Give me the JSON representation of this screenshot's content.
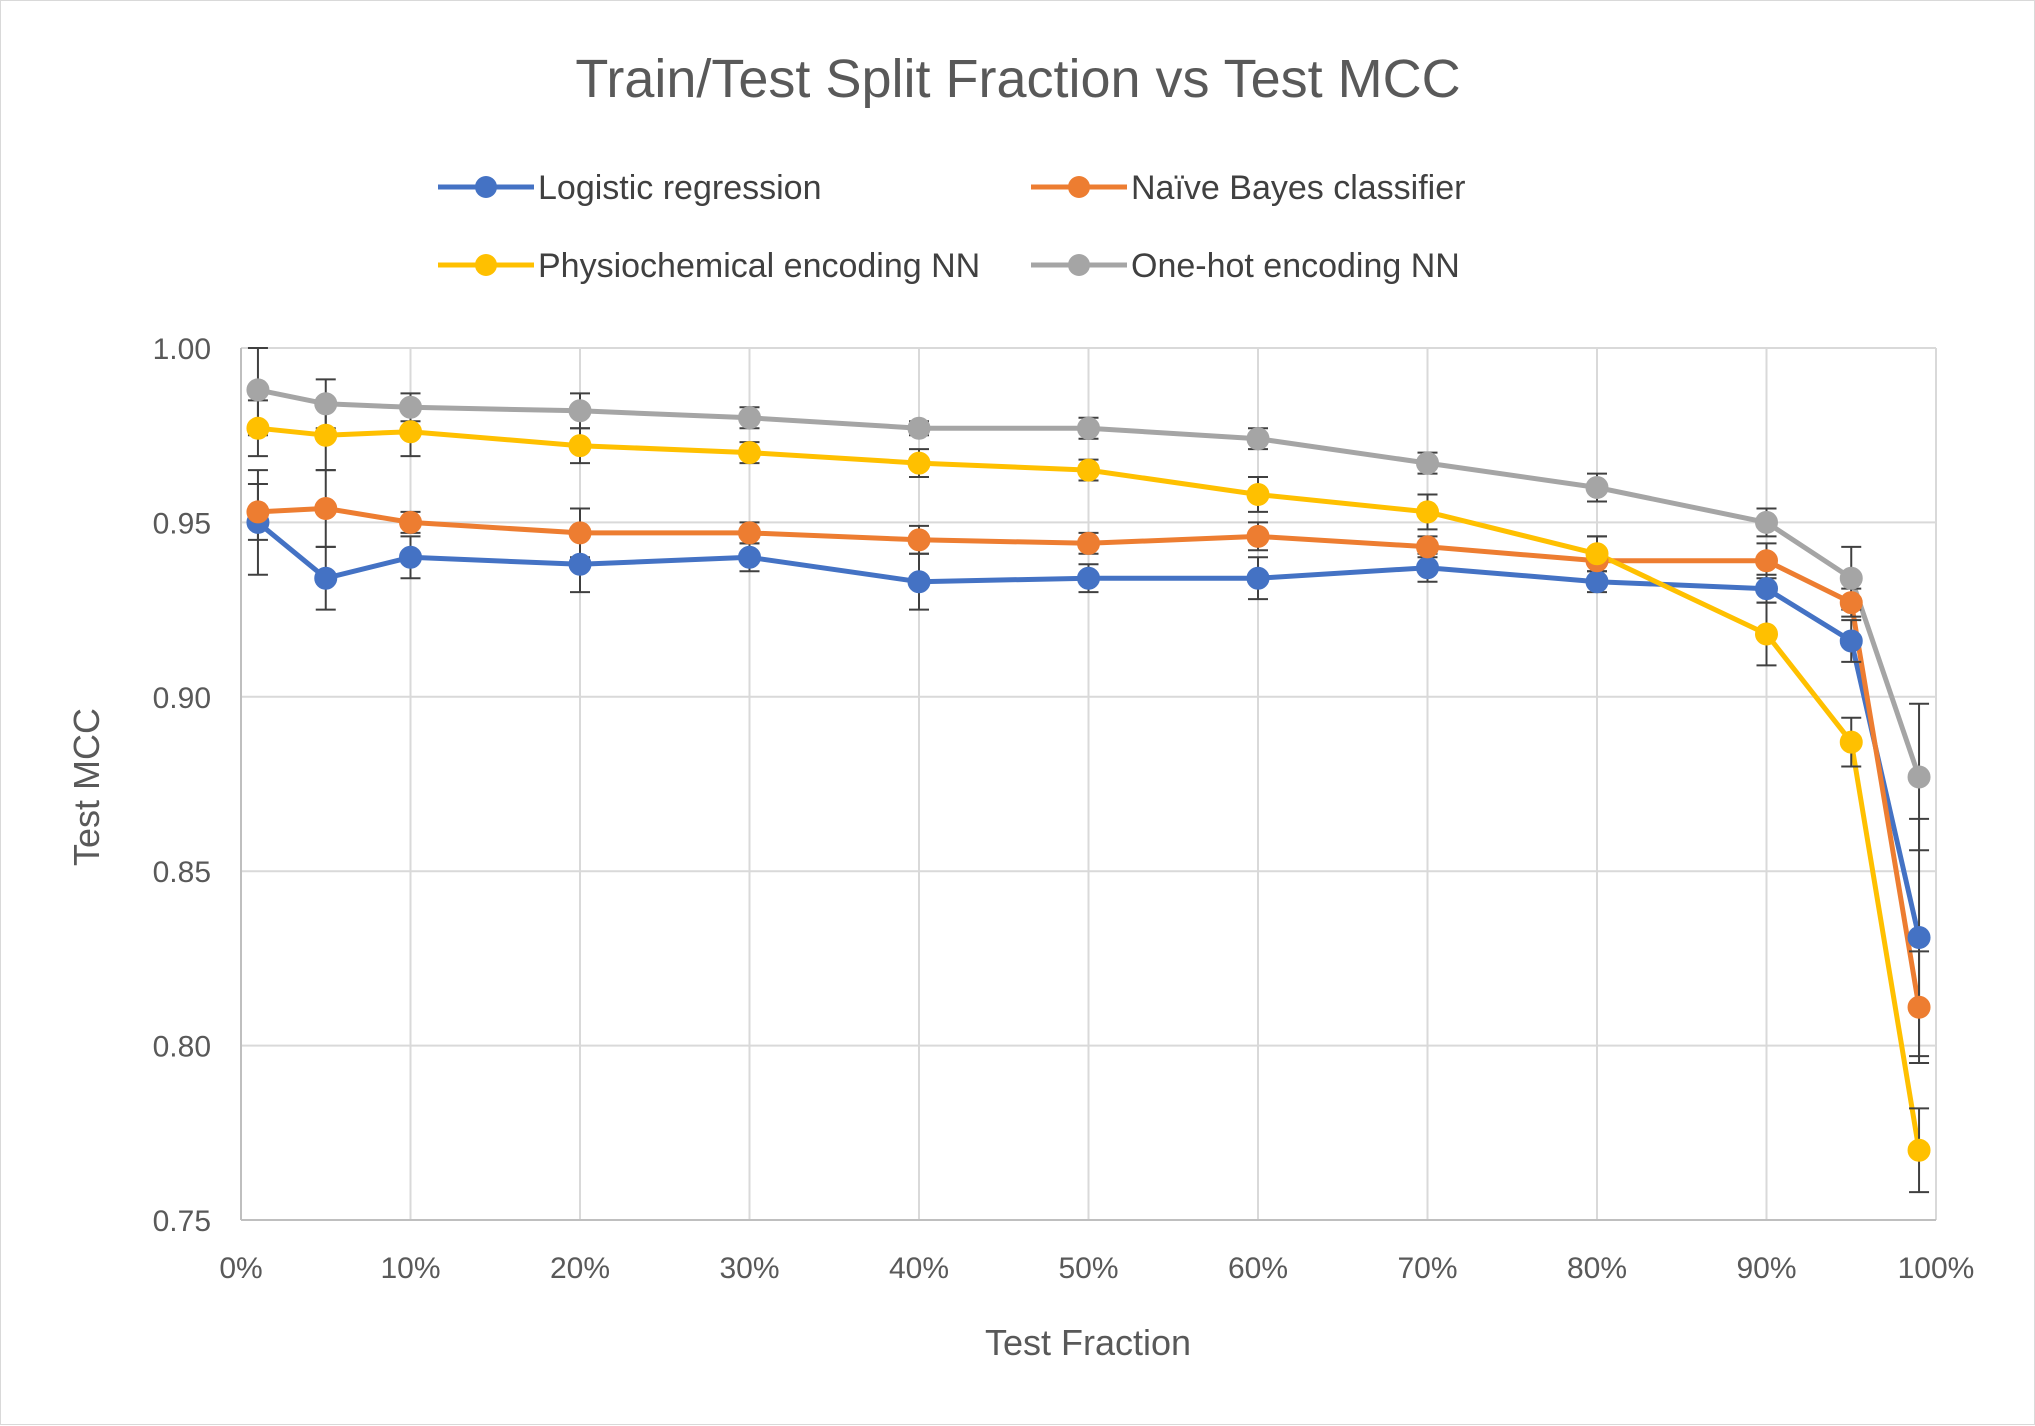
{
  "chart_data": {
    "type": "line",
    "title": "Train/Test Split Fraction vs Test MCC",
    "xlabel": "Test Fraction",
    "ylabel": "Test MCC",
    "x": [
      0.01,
      0.05,
      0.1,
      0.2,
      0.3,
      0.4,
      0.5,
      0.6,
      0.7,
      0.8,
      0.9,
      0.95,
      0.99
    ],
    "xlim": [
      0,
      1
    ],
    "ylim": [
      0.75,
      1.0
    ],
    "x_ticks": [
      "0%",
      "10%",
      "20%",
      "30%",
      "40%",
      "50%",
      "60%",
      "70%",
      "80%",
      "90%",
      "100%"
    ],
    "y_ticks": [
      "0.75",
      "0.80",
      "0.85",
      "0.90",
      "0.95",
      "1.00"
    ],
    "grid": "on",
    "legend_position": "top",
    "series": [
      {
        "name": "Logistic regression",
        "color": "#4472C4",
        "values": [
          0.95,
          0.934,
          0.94,
          0.938,
          0.94,
          0.933,
          0.934,
          0.934,
          0.937,
          0.933,
          0.931,
          0.916,
          0.831
        ],
        "errors": [
          0.015,
          0.009,
          0.006,
          0.008,
          0.004,
          0.008,
          0.004,
          0.006,
          0.004,
          0.003,
          0.004,
          0.006,
          0.034
        ]
      },
      {
        "name": "Naïve Bayes classifier",
        "color": "#ED7D31",
        "values": [
          0.953,
          0.954,
          0.95,
          0.947,
          0.947,
          0.945,
          0.944,
          0.946,
          0.943,
          0.939,
          0.939,
          0.927,
          0.811
        ],
        "errors": [
          0.008,
          0.011,
          0.003,
          0.007,
          0.003,
          0.004,
          0.003,
          0.004,
          0.003,
          0.007,
          0.005,
          0.004,
          0.016
        ]
      },
      {
        "name": "Physiochemical encoding NN",
        "color": "#FFC000",
        "values": [
          0.977,
          0.975,
          0.976,
          0.972,
          0.97,
          0.967,
          0.965,
          0.958,
          0.953,
          0.941,
          0.918,
          0.887,
          0.77
        ],
        "errors": [
          0.008,
          0.01,
          0.007,
          0.005,
          0.003,
          0.004,
          0.003,
          0.005,
          0.005,
          0.005,
          0.009,
          0.007,
          0.012
        ]
      },
      {
        "name": "One-hot encoding NN",
        "color": "#A5A5A5",
        "values": [
          0.988,
          0.984,
          0.983,
          0.982,
          0.98,
          0.977,
          0.977,
          0.974,
          0.967,
          0.96,
          0.95,
          0.934,
          0.877
        ],
        "errors": [
          0.013,
          0.007,
          0.004,
          0.005,
          0.003,
          0.002,
          0.003,
          0.003,
          0.003,
          0.004,
          0.004,
          0.009,
          0.021
        ]
      }
    ]
  }
}
